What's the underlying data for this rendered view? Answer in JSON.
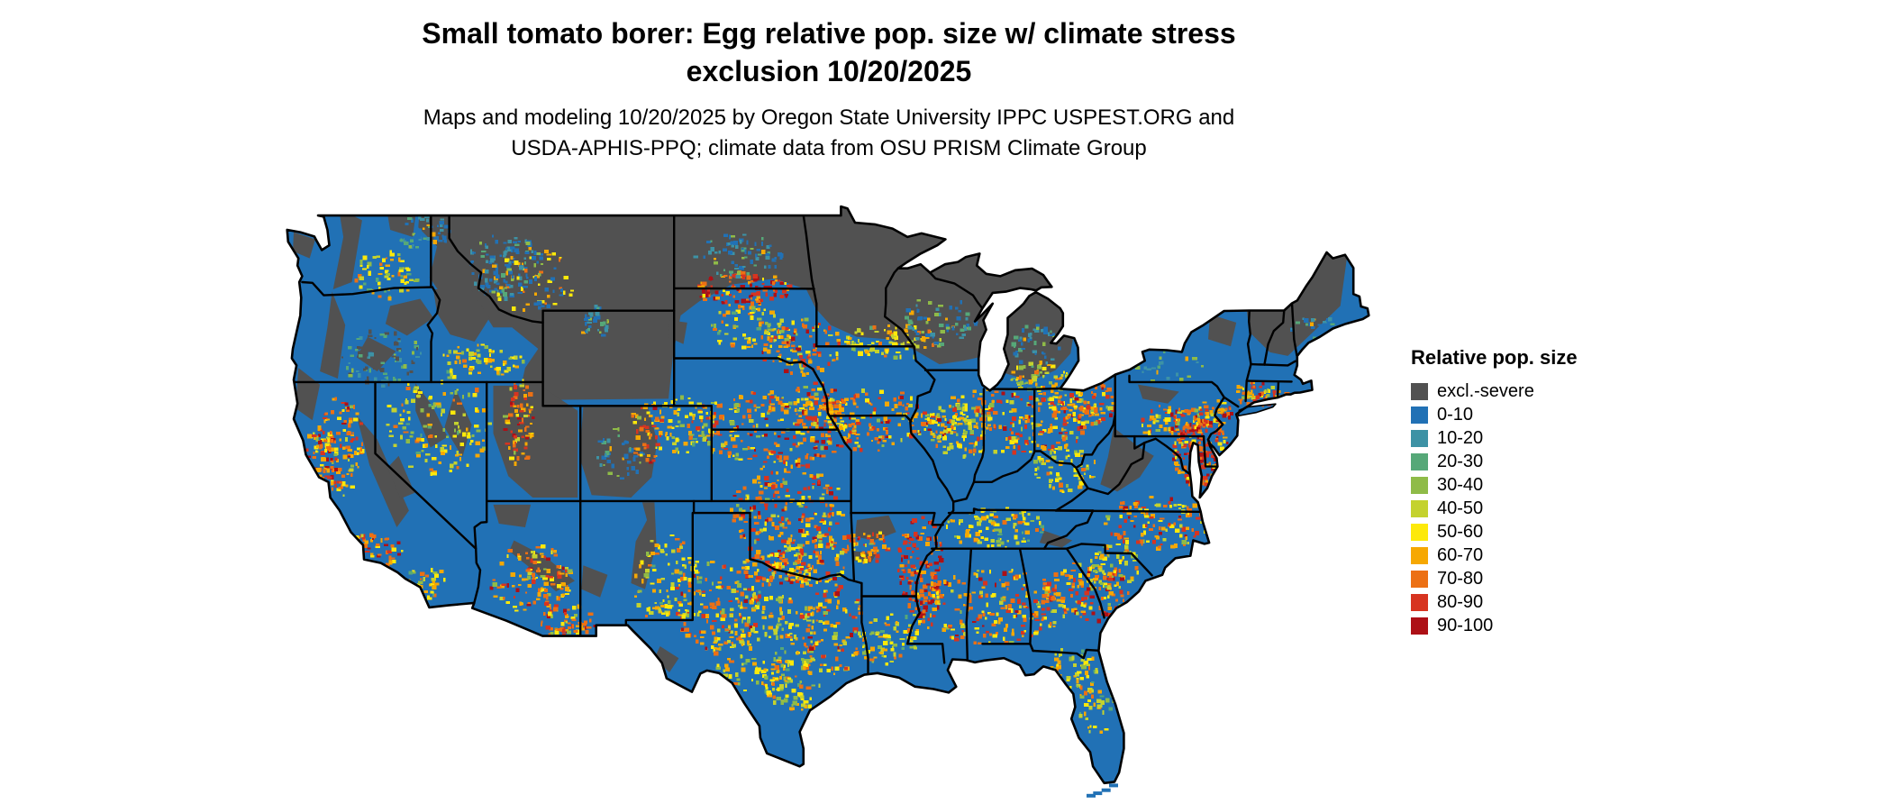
{
  "title": {
    "line1": "Small tomato borer: Egg relative pop. size w/ climate stress",
    "line2": "exclusion 10/20/2025"
  },
  "subtitle": {
    "line1": "Maps and modeling 10/20/2025 by Oregon State University IPPC USPEST.ORG and",
    "line2": "USDA-APHIS-PPQ; climate data from OSU PRISM Climate Group"
  },
  "legend": {
    "title": "Relative pop. size",
    "items": [
      {
        "label": "excl.-severe",
        "color": "#515151"
      },
      {
        "label": "0-10",
        "color": "#2171b5"
      },
      {
        "label": "10-20",
        "color": "#3d92a5"
      },
      {
        "label": "20-30",
        "color": "#56a878"
      },
      {
        "label": "30-40",
        "color": "#8fbb48"
      },
      {
        "label": "40-50",
        "color": "#c4d22e"
      },
      {
        "label": "50-60",
        "color": "#fde90a"
      },
      {
        "label": "60-70",
        "color": "#f6a802"
      },
      {
        "label": "70-80",
        "color": "#ec7014"
      },
      {
        "label": "80-90",
        "color": "#d73420"
      },
      {
        "label": "90-100",
        "color": "#ad1016"
      }
    ]
  },
  "map": {
    "region": "Continental United States",
    "border_color": "#000000",
    "water_color": "#ffffff"
  }
}
